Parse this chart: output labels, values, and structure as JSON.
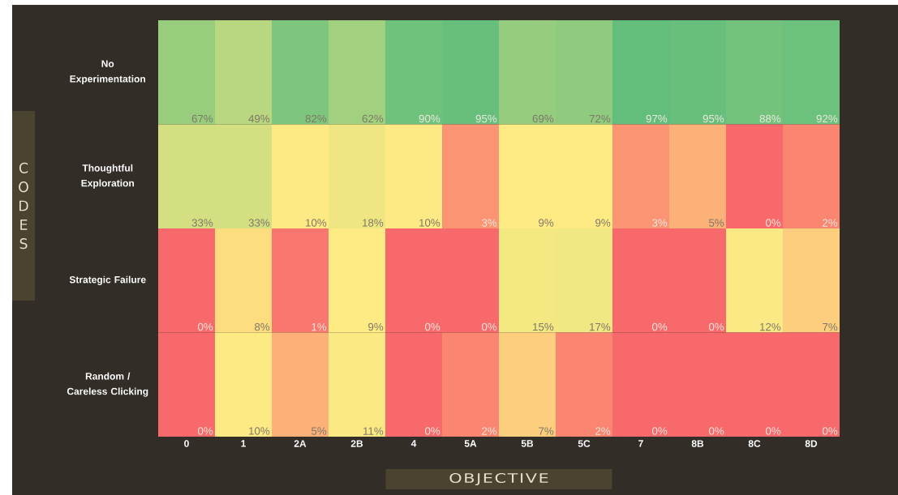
{
  "chart_data": {
    "type": "heatmap",
    "xlabel": "OBJECTIVE",
    "ylabel": "CODES",
    "categories": [
      "0",
      "1",
      "2A",
      "2B",
      "4",
      "5A",
      "5B",
      "5C",
      "7",
      "8B",
      "8C",
      "8D"
    ],
    "y_categories": [
      "No Experimentation",
      "Thoughtful Exploration",
      "Strategic Failure",
      "Random / Careless Clicking"
    ],
    "cells": [
      [
        67,
        49,
        82,
        62,
        90,
        95,
        69,
        72,
        97,
        95,
        88,
        92
      ],
      [
        33,
        33,
        10,
        18,
        10,
        3,
        9,
        9,
        3,
        5,
        0,
        2
      ],
      [
        0,
        8,
        1,
        9,
        0,
        0,
        15,
        17,
        0,
        0,
        12,
        7
      ],
      [
        0,
        10,
        5,
        11,
        0,
        2,
        7,
        2,
        0,
        0,
        0,
        0
      ]
    ],
    "cell_labels": [
      [
        "67%",
        "49%",
        "82%",
        "62%",
        "90%",
        "95%",
        "69%",
        "72%",
        "97%",
        "95%",
        "88%",
        "92%"
      ],
      [
        "33%",
        "33%",
        "10%",
        "18%",
        "10%",
        "3%",
        "9%",
        "9%",
        "3%",
        "5%",
        "0%",
        "2%"
      ],
      [
        "0%",
        "8%",
        "1%",
        "9%",
        "0%",
        "0%",
        "15%",
        "17%",
        "0%",
        "0%",
        "12%",
        "7%"
      ],
      [
        "0%",
        "10%",
        "5%",
        "11%",
        "0%",
        "2%",
        "7%",
        "2%",
        "0%",
        "0%",
        "0%",
        "0%"
      ]
    ]
  }
}
